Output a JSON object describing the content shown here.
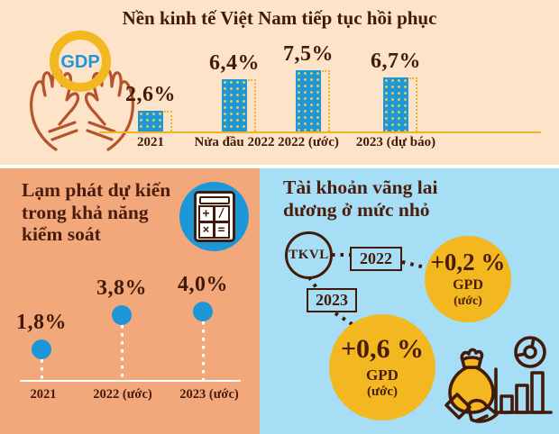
{
  "colors": {
    "panel_top_bg": "#fde3c7",
    "panel_left_bg": "#f2a87b",
    "panel_right_bg": "#a5def5",
    "accent_blue": "#1e97d9",
    "accent_yellow": "#f3b71f",
    "text_dark": "#431a0a",
    "hands_outline": "#b5532f"
  },
  "gdp_section": {
    "title": "Nền kinh tế Việt Nam tiếp tục hồi phục",
    "icon_label": "GDP",
    "bars": [
      {
        "label": "2021",
        "value_label": "2,6%"
      },
      {
        "label": "Nửa đầu 2022",
        "value_label": "6,4%"
      },
      {
        "label": "2022 (ước)",
        "value_label": "7,5%"
      },
      {
        "label": "2023 (dự báo)",
        "value_label": "6,7%"
      }
    ]
  },
  "inflation_section": {
    "title_lines": [
      "Lạm phát dự kiến",
      "trong khả năng",
      "kiểm soát"
    ],
    "calc_symbols": [
      "+",
      "/",
      "×",
      "="
    ],
    "points": [
      {
        "label": "2021",
        "value_label": "1,8%"
      },
      {
        "label": "2022 (ước)",
        "value_label": "3,8%"
      },
      {
        "label": "2023 (ước)",
        "value_label": "4,0%"
      }
    ]
  },
  "current_account_section": {
    "title_lines": [
      "Tài khoản vãng lai",
      "dương ở mức nhỏ"
    ],
    "node_label": "TKVL",
    "items": [
      {
        "year": "2022",
        "value_label": "+0,2 %",
        "unit": "GPD",
        "note": "(ước)"
      },
      {
        "year": "2023",
        "value_label": "+0,6 %",
        "unit": "GPD",
        "note": "(ước)"
      }
    ]
  },
  "chart_data": [
    {
      "type": "bar",
      "title": "Nền kinh tế Việt Nam tiếp tục hồi phục",
      "categories": [
        "2021",
        "Nửa đầu 2022",
        "2022 (ước)",
        "2023 (dự báo)"
      ],
      "values": [
        2.6,
        6.4,
        7.5,
        6.7
      ],
      "value_labels": [
        "2,6%",
        "6,4%",
        "7,5%",
        "6,7%"
      ],
      "unit": "%",
      "bar_color": "#1e97d9",
      "legend": "none",
      "grid": false
    },
    {
      "type": "scatter",
      "subtype": "lollipop",
      "title": "Lạm phát dự kiến trong khả năng kiểm soát",
      "categories": [
        "2021",
        "2022 (ước)",
        "2023 (ước)"
      ],
      "values": [
        1.8,
        3.8,
        4.0
      ],
      "value_labels": [
        "1,8%",
        "3,8%",
        "4,0%"
      ],
      "unit": "%",
      "marker_color": "#1e97d9",
      "legend": "none",
      "grid": false
    },
    {
      "type": "table",
      "title": "Tài khoản vãng lai dương ở mức nhỏ",
      "rows": [
        [
          "TKVL",
          "2022",
          "+0,2 %",
          "GPD",
          "(ước)"
        ],
        [
          "TKVL",
          "2023",
          "+0,6 %",
          "GPD",
          "(ước)"
        ]
      ]
    }
  ]
}
